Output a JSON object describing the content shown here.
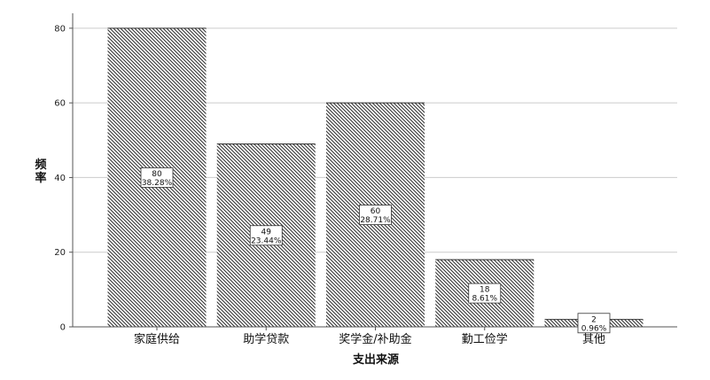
{
  "chart_data": {
    "type": "bar",
    "categories": [
      "家庭供给",
      "助学贷款",
      "奖学金/补助金",
      "勤工俭学",
      "其他"
    ],
    "values": [
      80,
      49,
      60,
      18,
      2
    ],
    "percent_labels": [
      "38.28%",
      "23.44%",
      "28.71%",
      "8.61%",
      "0.96%"
    ],
    "yticks": [
      0,
      20,
      40,
      60,
      80
    ],
    "ylim": [
      0,
      84
    ],
    "xlabel": "支出来源",
    "ylabel": "频率",
    "grid": true,
    "bar_fill": "diagonal-hatch",
    "colors": {
      "bar_stroke": "#333333",
      "grid": "#cccccc",
      "axis": "#555555"
    }
  }
}
